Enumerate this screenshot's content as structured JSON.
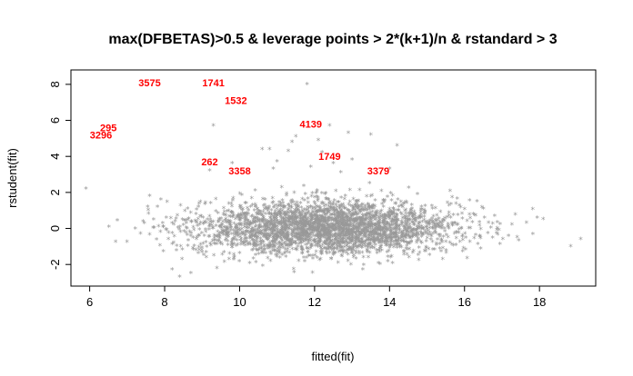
{
  "chart_data": {
    "type": "scatter",
    "title": "max(DFBETAS)>0.5 & leverage points > 2*(k+1)/n & rstandard > 3",
    "xlabel": "fitted(fit)",
    "ylabel": "rstudent(fit)",
    "xlim": [
      5.5,
      19.5
    ],
    "ylim": [
      -3.2,
      8.8
    ],
    "xticks": [
      6,
      8,
      10,
      12,
      14,
      16,
      18
    ],
    "yticks": [
      -2,
      0,
      2,
      4,
      6,
      8
    ],
    "grid": false,
    "marker": "*",
    "point_color": "#999999",
    "label_color": "#ff0000",
    "cloud": {
      "n": 3200,
      "x_mean": 12.3,
      "x_sd": 1.75,
      "y_mean": 0.0,
      "y_sd": 0.75
    },
    "outliers": [
      {
        "x": 5.9,
        "y": 2.2
      },
      {
        "x": 18.1,
        "y": 0.5
      },
      {
        "x": 19.1,
        "y": -0.6
      },
      {
        "x": 11.8,
        "y": 8.0
      },
      {
        "x": 9.3,
        "y": 5.7
      },
      {
        "x": 12.4,
        "y": 5.7
      },
      {
        "x": 12.9,
        "y": 5.3
      },
      {
        "x": 13.5,
        "y": 5.2
      },
      {
        "x": 11.5,
        "y": 5.1
      },
      {
        "x": 12.1,
        "y": 4.9
      },
      {
        "x": 11.4,
        "y": 4.8
      },
      {
        "x": 14.2,
        "y": 4.6
      },
      {
        "x": 10.6,
        "y": 4.4
      },
      {
        "x": 10.8,
        "y": 4.4
      },
      {
        "x": 11.3,
        "y": 4.3
      },
      {
        "x": 12.2,
        "y": 4.2
      },
      {
        "x": 13.0,
        "y": 3.8
      },
      {
        "x": 11.0,
        "y": 3.7
      },
      {
        "x": 9.8,
        "y": 3.6
      },
      {
        "x": 11.9,
        "y": 3.4
      },
      {
        "x": 12.5,
        "y": 3.6
      },
      {
        "x": 10.9,
        "y": 3.3
      },
      {
        "x": 14.0,
        "y": 3.3
      },
      {
        "x": 9.2,
        "y": 3.2
      },
      {
        "x": 12.7,
        "y": 3.1
      },
      {
        "x": 7.6,
        "y": 1.8
      },
      {
        "x": 7.9,
        "y": 1.6
      },
      {
        "x": 8.4,
        "y": -2.7
      },
      {
        "x": 8.2,
        "y": -2.3
      },
      {
        "x": 8.7,
        "y": -2.5
      }
    ],
    "annotations": [
      {
        "text": "3575",
        "x": 7.6,
        "y": 8.1
      },
      {
        "text": "1741",
        "x": 9.3,
        "y": 8.1
      },
      {
        "text": "1532",
        "x": 9.9,
        "y": 7.1
      },
      {
        "text": "295",
        "x": 6.5,
        "y": 5.6
      },
      {
        "text": "3296",
        "x": 6.3,
        "y": 5.2
      },
      {
        "text": "4139",
        "x": 11.9,
        "y": 5.8
      },
      {
        "text": "1749",
        "x": 12.4,
        "y": 4.0
      },
      {
        "text": "262",
        "x": 9.2,
        "y": 3.7
      },
      {
        "text": "3358",
        "x": 10.0,
        "y": 3.2
      },
      {
        "text": "3379",
        "x": 13.7,
        "y": 3.2
      }
    ]
  }
}
